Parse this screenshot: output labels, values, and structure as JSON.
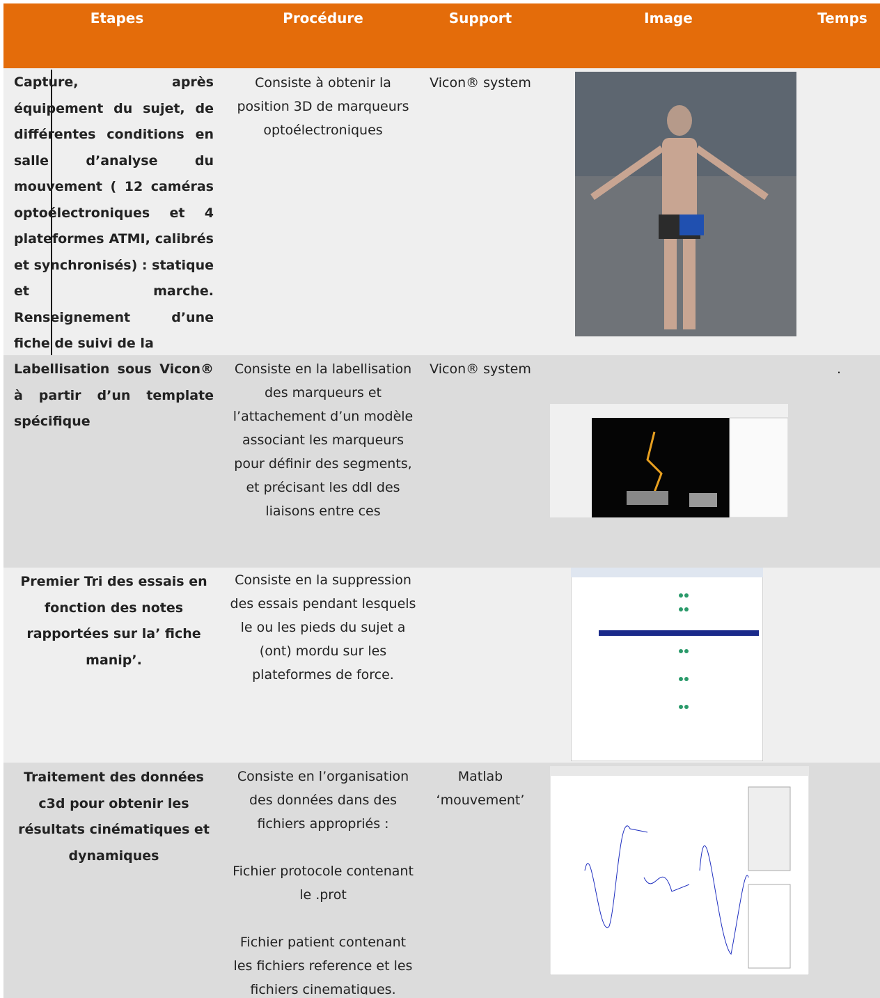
{
  "table": {
    "header": [
      "Etapes",
      "Procédure",
      "Support",
      "Image",
      "Temps"
    ],
    "rows": [
      {
        "etape": "Capture, après équipement du sujet, de différentes conditions en salle d’analyse du mouvement ( 12 caméras optoélectroniques et 4 plateformes ATMI, calibrés et synchronisés) : statique et marche. Renseignement d’une fiche de suivi de la",
        "procedure": [
          "Consiste à obtenir la position 3D de marqueurs optoélectroniques"
        ],
        "support": "Vicon® system"
      },
      {
        "etape": "Labellisation sous Vicon® à partir d’un template spécifique",
        "procedure": [
          "Consiste en la labellisation des marqueurs et l’attachement d’un modèle associant les marqueurs pour définir des segments, et précisant les ddl des liaisons entre ces"
        ],
        "support": "Vicon® system",
        "temps": "."
      },
      {
        "etape": "Premier Tri des essais en fonction des notes rapportées sur la’ fiche manip’.",
        "procedure": [
          "Consiste en la suppression des essais pendant lesquels le ou les pieds du sujet a (ont) mordu sur les plateformes de force."
        ]
      },
      {
        "etape": "Traitement des données c3d pour obtenir les résultats cinématiques et dynamiques",
        "procedure": [
          "Consiste en l’organisation des données dans des fichiers appropriés :",
          "Fichier protocole contenant le .prot",
          "Fichier patient contenant les fichiers reference et les fichiers cinematiques."
        ],
        "support": "Matlab ‘mouvement’"
      }
    ]
  }
}
